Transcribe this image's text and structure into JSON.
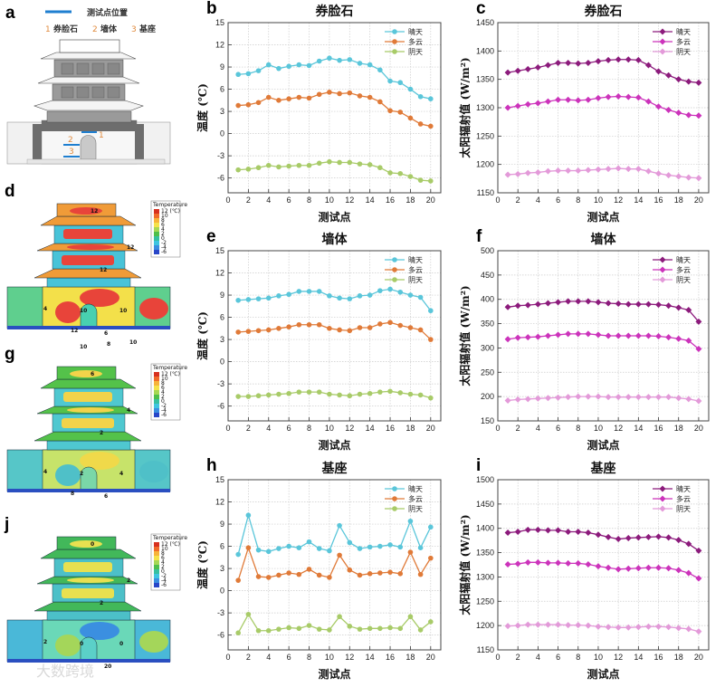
{
  "panel_a": {
    "letter": "a",
    "legend_label": "测试点位置",
    "points": [
      {
        "num": "1",
        "label": "券脸石"
      },
      {
        "num": "2",
        "label": "墙体"
      },
      {
        "num": "3",
        "label": "基座"
      }
    ],
    "marker_color": "#1f7fd0",
    "number_color": "#e08a3c"
  },
  "thermal_panels": [
    {
      "letter": "d",
      "legend_title": "Temperature",
      "contour_labels": [
        "12",
        "12",
        "12",
        "4",
        "10",
        "10",
        "6",
        "12",
        "8",
        "10",
        "10"
      ]
    },
    {
      "letter": "g",
      "legend_title": "Temperature",
      "contour_labels": [
        "6",
        "4",
        "2",
        "4",
        "2",
        "4",
        "6",
        "8"
      ]
    },
    {
      "letter": "j",
      "legend_title": "Temperature",
      "contour_labels": [
        "0",
        "2",
        "2",
        "2",
        "0",
        "0",
        "20"
      ]
    }
  ],
  "thermal_scale": [
    "12 (℃)",
    "10",
    "8",
    "6",
    "4",
    "2",
    "0",
    "-2",
    "-4",
    "-6"
  ],
  "watermark": "大数跨境",
  "chart_data": [
    {
      "panel": "b",
      "type": "line",
      "title": "券脸石",
      "xlabel": "测试点",
      "ylabel": "温度 (℃)",
      "xlim": [
        0,
        21
      ],
      "ylim": [
        -8,
        15
      ],
      "xticks": [
        0,
        2,
        4,
        6,
        8,
        10,
        12,
        14,
        16,
        18,
        20
      ],
      "yticks": [
        -6,
        -3,
        0,
        3,
        6,
        9,
        12,
        15
      ],
      "grid": true,
      "legend": "top-right",
      "marker": "circle",
      "x": [
        1,
        2,
        3,
        4,
        5,
        6,
        7,
        8,
        9,
        10,
        11,
        12,
        13,
        14,
        15,
        16,
        17,
        18,
        19,
        20
      ],
      "series": [
        {
          "name": "晴天",
          "color": "#5ac6da",
          "values": [
            8.0,
            8.1,
            8.5,
            9.3,
            8.8,
            9.1,
            9.3,
            9.2,
            9.8,
            10.2,
            9.9,
            10.0,
            9.5,
            9.3,
            8.6,
            7.1,
            6.9,
            6.0,
            5.0,
            4.7
          ]
        },
        {
          "name": "多云",
          "color": "#e07a38",
          "values": [
            3.8,
            3.9,
            4.2,
            4.9,
            4.5,
            4.7,
            4.9,
            4.8,
            5.3,
            5.6,
            5.4,
            5.5,
            5.1,
            4.9,
            4.3,
            3.1,
            2.9,
            2.1,
            1.3,
            1.0
          ]
        },
        {
          "name": "阴天",
          "color": "#a8cb68",
          "values": [
            -4.9,
            -4.8,
            -4.6,
            -4.3,
            -4.5,
            -4.4,
            -4.3,
            -4.3,
            -4.0,
            -3.8,
            -3.9,
            -3.9,
            -4.1,
            -4.2,
            -4.6,
            -5.3,
            -5.4,
            -5.8,
            -6.3,
            -6.4
          ]
        }
      ]
    },
    {
      "panel": "c",
      "type": "line",
      "title": "券脸石",
      "xlabel": "测试点",
      "ylabel": "太阳辐射值 (W/m²)",
      "xlim": [
        0,
        21
      ],
      "ylim": [
        1150,
        1450
      ],
      "xticks": [
        0,
        2,
        4,
        6,
        8,
        10,
        12,
        14,
        16,
        18,
        20
      ],
      "yticks": [
        1150,
        1200,
        1250,
        1300,
        1350,
        1400,
        1450
      ],
      "grid": true,
      "legend": "top-right",
      "marker": "diamond",
      "x": [
        1,
        2,
        3,
        4,
        5,
        6,
        7,
        8,
        9,
        10,
        11,
        12,
        13,
        14,
        15,
        16,
        17,
        18,
        19,
        20
      ],
      "series": [
        {
          "name": "晴天",
          "color": "#8c1b7c",
          "values": [
            1362,
            1365,
            1368,
            1371,
            1375,
            1379,
            1379,
            1378,
            1379,
            1382,
            1384,
            1385,
            1385,
            1384,
            1375,
            1364,
            1357,
            1350,
            1346,
            1344
          ]
        },
        {
          "name": "多云",
          "color": "#cc33bb",
          "values": [
            1300,
            1303,
            1306,
            1308,
            1311,
            1314,
            1314,
            1313,
            1314,
            1317,
            1319,
            1320,
            1319,
            1318,
            1311,
            1302,
            1296,
            1291,
            1287,
            1286
          ]
        },
        {
          "name": "阴天",
          "color": "#e39ad9",
          "values": [
            1182,
            1183,
            1185,
            1186,
            1188,
            1189,
            1189,
            1189,
            1190,
            1191,
            1192,
            1193,
            1192,
            1192,
            1188,
            1184,
            1181,
            1179,
            1177,
            1176
          ]
        }
      ]
    },
    {
      "panel": "e",
      "type": "line",
      "title": "墙体",
      "xlabel": "测试点",
      "ylabel": "温度 (℃)",
      "xlim": [
        0,
        21
      ],
      "ylim": [
        -8,
        15
      ],
      "xticks": [
        0,
        2,
        4,
        6,
        8,
        10,
        12,
        14,
        16,
        18,
        20
      ],
      "yticks": [
        -6,
        -3,
        0,
        3,
        6,
        9,
        12,
        15
      ],
      "grid": true,
      "legend": "top-right",
      "marker": "circle",
      "x": [
        1,
        2,
        3,
        4,
        5,
        6,
        7,
        8,
        9,
        10,
        11,
        12,
        13,
        14,
        15,
        16,
        17,
        18,
        19,
        20
      ],
      "series": [
        {
          "name": "晴天",
          "color": "#5ac6da",
          "values": [
            8.3,
            8.4,
            8.5,
            8.6,
            8.9,
            9.1,
            9.5,
            9.5,
            9.5,
            8.9,
            8.6,
            8.5,
            8.9,
            9.0,
            9.6,
            9.8,
            9.4,
            9.0,
            8.7,
            6.9
          ]
        },
        {
          "name": "多云",
          "color": "#e07a38",
          "values": [
            4.0,
            4.1,
            4.2,
            4.3,
            4.5,
            4.7,
            5.0,
            5.0,
            5.0,
            4.5,
            4.3,
            4.2,
            4.6,
            4.6,
            5.1,
            5.3,
            4.9,
            4.6,
            4.3,
            3.0
          ]
        },
        {
          "name": "阴天",
          "color": "#a8cb68",
          "values": [
            -4.7,
            -4.7,
            -4.6,
            -4.5,
            -4.4,
            -4.3,
            -4.1,
            -4.1,
            -4.1,
            -4.4,
            -4.5,
            -4.6,
            -4.4,
            -4.3,
            -4.1,
            -4.0,
            -4.2,
            -4.4,
            -4.5,
            -4.9
          ]
        }
      ]
    },
    {
      "panel": "f",
      "type": "line",
      "title": "墙体",
      "xlabel": "测试点",
      "ylabel": "太阳辐射值 (W/m²)",
      "xlim": [
        0,
        21
      ],
      "ylim": [
        150,
        500
      ],
      "xticks": [
        0,
        2,
        4,
        6,
        8,
        10,
        12,
        14,
        16,
        18,
        20
      ],
      "yticks": [
        150,
        200,
        250,
        300,
        350,
        400,
        450,
        500
      ],
      "grid": true,
      "legend": "top-right",
      "marker": "diamond",
      "x": [
        1,
        2,
        3,
        4,
        5,
        6,
        7,
        8,
        9,
        10,
        11,
        12,
        13,
        14,
        15,
        16,
        17,
        18,
        19,
        20
      ],
      "series": [
        {
          "name": "晴天",
          "color": "#8c1b7c",
          "values": [
            384,
            387,
            388,
            390,
            392,
            394,
            396,
            396,
            396,
            394,
            392,
            391,
            390,
            390,
            390,
            389,
            387,
            383,
            378,
            354
          ]
        },
        {
          "name": "多云",
          "color": "#cc33bb",
          "values": [
            318,
            321,
            322,
            323,
            325,
            327,
            329,
            329,
            329,
            327,
            325,
            325,
            325,
            325,
            325,
            324,
            322,
            319,
            315,
            298
          ]
        },
        {
          "name": "阴天",
          "color": "#e39ad9",
          "values": [
            192,
            194,
            195,
            196,
            197,
            198,
            199,
            200,
            200,
            200,
            199,
            199,
            199,
            199,
            199,
            199,
            199,
            197,
            195,
            191
          ]
        }
      ]
    },
    {
      "panel": "h",
      "type": "line",
      "title": "基座",
      "xlabel": "测试点",
      "ylabel": "温度 (℃)",
      "xlim": [
        0,
        21
      ],
      "ylim": [
        -8,
        15
      ],
      "xticks": [
        0,
        2,
        4,
        6,
        8,
        10,
        12,
        14,
        16,
        18,
        20
      ],
      "yticks": [
        -6,
        -3,
        0,
        3,
        6,
        9,
        12,
        15
      ],
      "grid": true,
      "legend": "top-right",
      "marker": "circle",
      "x": [
        1,
        2,
        3,
        4,
        5,
        6,
        7,
        8,
        9,
        10,
        11,
        12,
        13,
        14,
        15,
        16,
        17,
        18,
        19,
        20
      ],
      "series": [
        {
          "name": "晴天",
          "color": "#5ac6da",
          "values": [
            4.9,
            10.2,
            5.5,
            5.3,
            5.7,
            6.0,
            5.8,
            6.6,
            5.7,
            5.4,
            8.8,
            6.5,
            5.7,
            5.9,
            6.0,
            6.2,
            5.9,
            9.4,
            5.8,
            8.6
          ]
        },
        {
          "name": "多云",
          "color": "#e07a38",
          "values": [
            1.4,
            5.8,
            1.9,
            1.8,
            2.1,
            2.4,
            2.2,
            2.9,
            2.1,
            1.8,
            4.8,
            2.8,
            2.1,
            2.3,
            2.4,
            2.5,
            2.3,
            5.2,
            2.2,
            4.4
          ]
        },
        {
          "name": "阴天",
          "color": "#a8cb68",
          "values": [
            -5.7,
            -3.2,
            -5.4,
            -5.4,
            -5.2,
            -5.0,
            -5.1,
            -4.7,
            -5.2,
            -5.3,
            -3.5,
            -4.8,
            -5.2,
            -5.1,
            -5.1,
            -5.0,
            -5.1,
            -3.5,
            -5.3,
            -4.2
          ]
        }
      ]
    },
    {
      "panel": "i",
      "type": "line",
      "title": "基座",
      "xlabel": "测试点",
      "ylabel": "太阳辐射值 (W/m²)",
      "xlim": [
        0,
        21
      ],
      "ylim": [
        1150,
        1500
      ],
      "xticks": [
        0,
        2,
        4,
        6,
        8,
        10,
        12,
        14,
        16,
        18,
        20
      ],
      "yticks": [
        1150,
        1200,
        1250,
        1300,
        1350,
        1400,
        1450,
        1500
      ],
      "grid": true,
      "legend": "top-right",
      "marker": "diamond",
      "x": [
        1,
        2,
        3,
        4,
        5,
        6,
        7,
        8,
        9,
        10,
        11,
        12,
        13,
        14,
        15,
        16,
        17,
        18,
        19,
        20
      ],
      "series": [
        {
          "name": "晴天",
          "color": "#8c1b7c",
          "values": [
            1391,
            1393,
            1397,
            1397,
            1396,
            1396,
            1393,
            1393,
            1391,
            1387,
            1382,
            1378,
            1380,
            1381,
            1382,
            1383,
            1381,
            1376,
            1368,
            1354
          ]
        },
        {
          "name": "多云",
          "color": "#cc33bb",
          "values": [
            1326,
            1327,
            1330,
            1330,
            1329,
            1329,
            1328,
            1328,
            1326,
            1322,
            1319,
            1316,
            1317,
            1318,
            1319,
            1319,
            1318,
            1314,
            1308,
            1297
          ]
        },
        {
          "name": "阴天",
          "color": "#e39ad9",
          "values": [
            1199,
            1200,
            1202,
            1202,
            1202,
            1202,
            1201,
            1201,
            1200,
            1198,
            1197,
            1196,
            1196,
            1197,
            1198,
            1198,
            1197,
            1195,
            1193,
            1188
          ]
        }
      ]
    }
  ]
}
